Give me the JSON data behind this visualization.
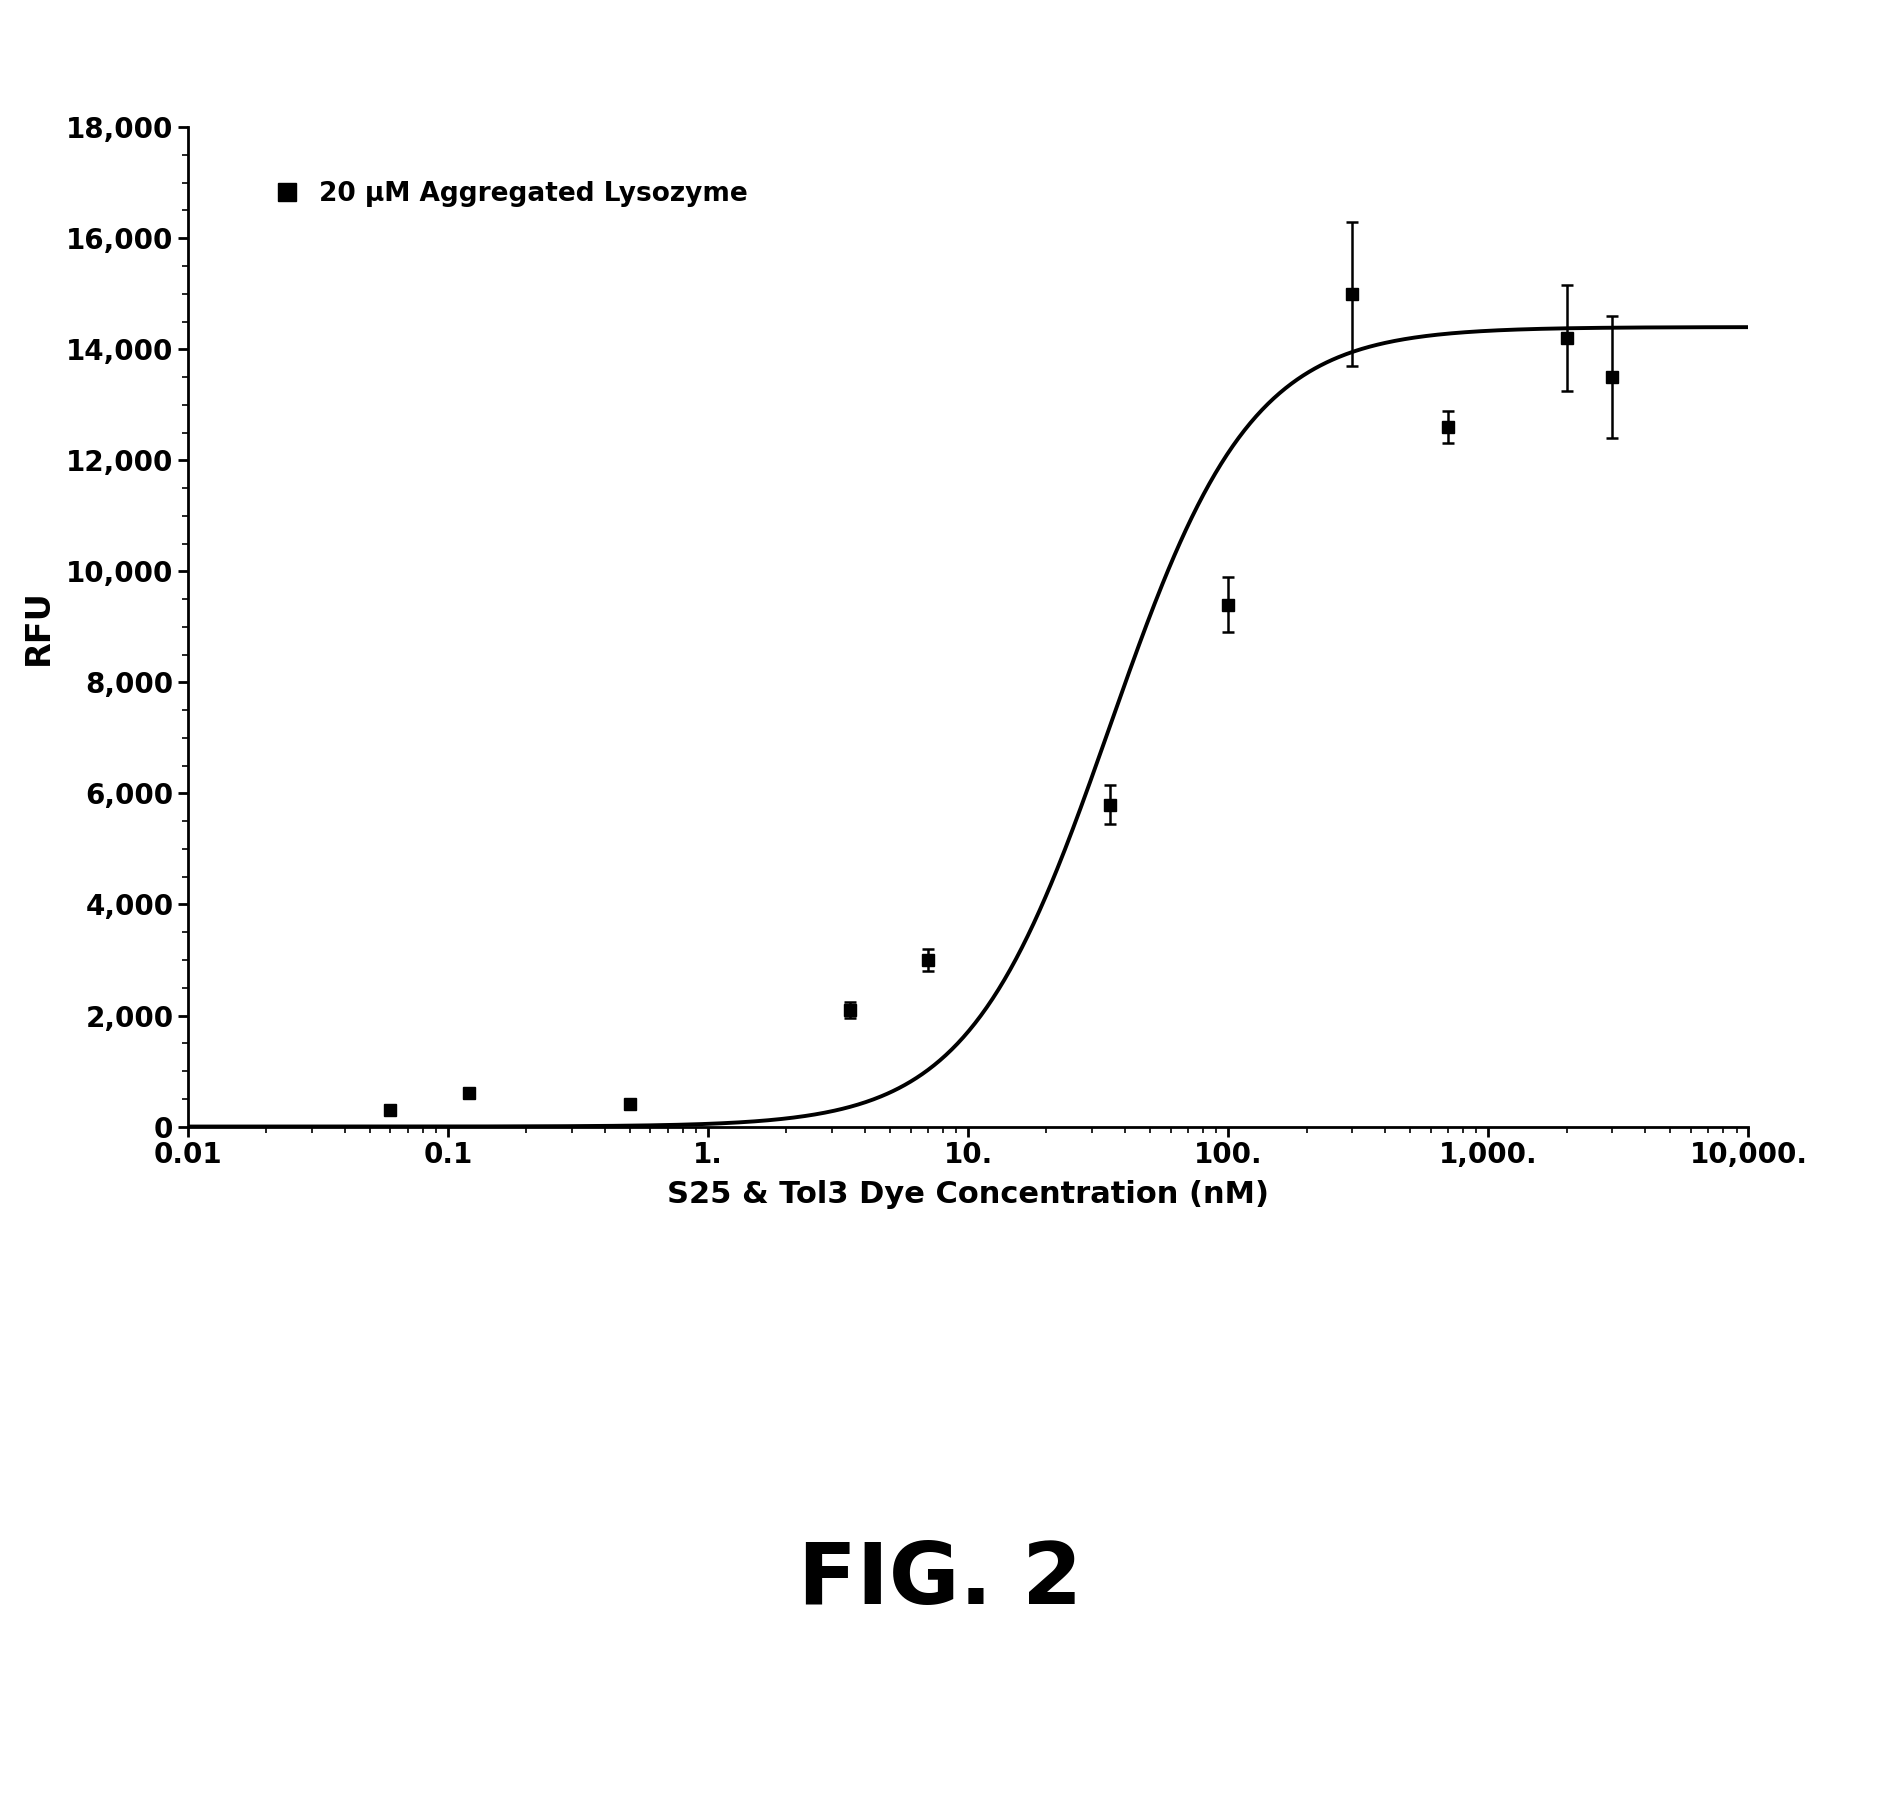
{
  "title": "FIG. 2",
  "xlabel": "S25 & Tol3 Dye Concentration (nM)",
  "ylabel": "RFU",
  "legend_label": "20 μM Aggregated Lysozyme",
  "ylim": [
    0,
    18000
  ],
  "yticks": [
    0,
    2000,
    4000,
    6000,
    8000,
    10000,
    12000,
    14000,
    16000,
    18000
  ],
  "xtick_labels": [
    "0.01",
    "0.1",
    "1.",
    "10.",
    "100.",
    "1,000.",
    "10,000."
  ],
  "xtick_vals": [
    0.01,
    0.1,
    1.0,
    10.0,
    100.0,
    1000.0,
    10000.0
  ],
  "data_x": [
    0.06,
    0.12,
    0.5,
    3.5,
    7.0,
    35.0,
    100.0,
    300.0,
    700.0,
    2000.0,
    3000.0
  ],
  "data_y": [
    300,
    600,
    400,
    2100,
    3000,
    5800,
    9400,
    15000,
    12600,
    14200,
    13500
  ],
  "data_yerr": [
    80,
    80,
    80,
    150,
    200,
    350,
    500,
    1300,
    280,
    950,
    1100
  ],
  "curve_Bmax": 14400,
  "curve_Kd": 35,
  "curve_n": 1.6,
  "line_color": "#000000",
  "marker_color": "#000000",
  "background_color": "#ffffff",
  "page_background": "#f5f5f0"
}
